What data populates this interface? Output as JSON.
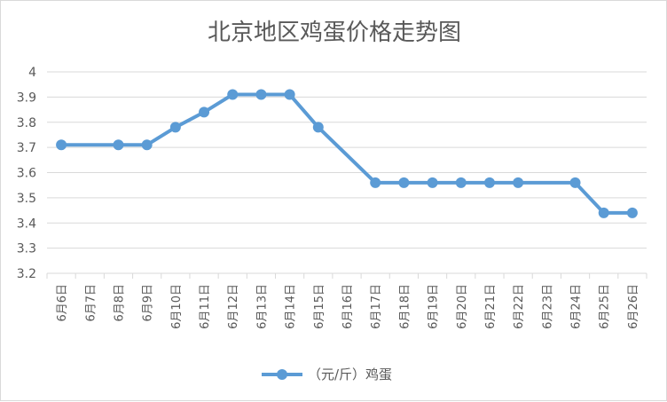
{
  "chart_data": {
    "type": "line",
    "title": "北京地区鸡蛋价格走势图",
    "xlabel": "",
    "ylabel": "",
    "categories": [
      "6月6日",
      "6月7日",
      "6月8日",
      "6月9日",
      "6月10日",
      "6月11日",
      "6月12日",
      "6月13日",
      "6月14日",
      "6月15日",
      "6月16日",
      "6月17日",
      "6月18日",
      "6月19日",
      "6月20日",
      "6月21日",
      "6月22日",
      "6月23日",
      "6月24日",
      "6月25日",
      "6月26日"
    ],
    "series": [
      {
        "name": "（元/斤）鸡蛋",
        "values": [
          3.71,
          null,
          3.71,
          3.71,
          3.78,
          3.84,
          3.91,
          3.91,
          3.91,
          3.78,
          null,
          3.56,
          3.56,
          3.56,
          3.56,
          3.56,
          3.56,
          null,
          3.56,
          3.44,
          3.44
        ]
      }
    ],
    "ylim": [
      3.2,
      4.0
    ],
    "yticks": [
      "3.2",
      "3.3",
      "3.4",
      "3.5",
      "3.6",
      "3.7",
      "3.8",
      "3.9",
      "4"
    ],
    "grid": true,
    "legend": "bottom",
    "colors": {
      "series": "#5b9bd5",
      "grid": "#d9d9d9",
      "text": "#595959"
    }
  }
}
